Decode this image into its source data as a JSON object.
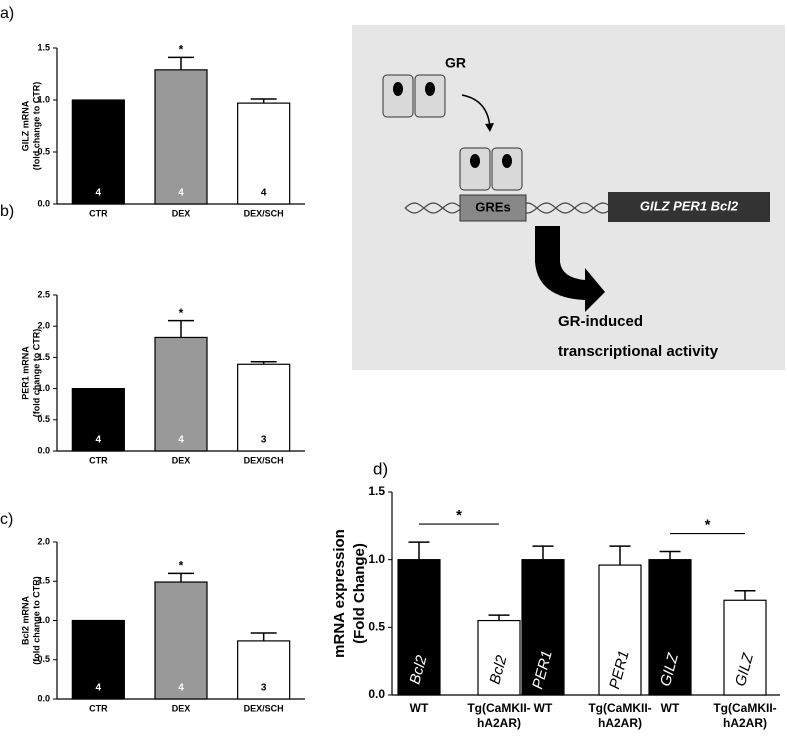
{
  "chart_data": [
    {
      "type": "bar",
      "label": "a)",
      "ylabel": [
        "GILZ mRNA",
        "(fold change to CTR)"
      ],
      "categories": [
        [
          "CTR"
        ],
        [
          "DEX"
        ],
        [
          "DEX/SCH"
        ]
      ],
      "values": [
        1.0,
        1.29,
        0.97
      ],
      "errors": [
        null,
        0.12,
        0.04
      ],
      "colors": [
        "#000000",
        "#999999",
        "#ffffff"
      ],
      "n_labels": [
        "4",
        "4",
        "4"
      ],
      "significance": [
        {
          "label": "*",
          "bars": [
            1
          ]
        }
      ],
      "ylim": [
        0,
        1.5
      ],
      "yticks": [
        {
          "value": 0,
          "label": "0.0"
        },
        {
          "value": 0.5,
          "label": "0.5"
        },
        {
          "value": 1,
          "label": "1.0"
        },
        {
          "value": 1.5,
          "label": "1.5"
        }
      ]
    },
    {
      "type": "bar",
      "label": "b)",
      "ylabel": [
        "PER1 mRNA",
        "(fold change to CTR)"
      ],
      "categories": [
        [
          "CTR"
        ],
        [
          "DEX"
        ],
        [
          "DEX/SCH"
        ]
      ],
      "values": [
        1.0,
        1.82,
        1.39
      ],
      "errors": [
        null,
        0.27,
        0.04
      ],
      "colors": [
        "#000000",
        "#999999",
        "#ffffff"
      ],
      "n_labels": [
        "4",
        "4",
        "3"
      ],
      "significance": [
        {
          "label": "*",
          "bars": [
            1
          ]
        }
      ],
      "ylim": [
        0,
        2.5
      ],
      "yticks": [
        {
          "value": 0,
          "label": "0.0"
        },
        {
          "value": 0.5,
          "label": "0.5"
        },
        {
          "value": 1,
          "label": "1.0"
        },
        {
          "value": 1.5,
          "label": "1.5"
        },
        {
          "value": 2,
          "label": "2.0"
        },
        {
          "value": 2.5,
          "label": "2.5"
        }
      ]
    },
    {
      "type": "bar",
      "label": "c)",
      "ylabel": [
        "Bcl2 mRNA",
        "(fold change to CTR)"
      ],
      "categories": [
        [
          "CTR"
        ],
        [
          "DEX"
        ],
        [
          "DEX/SCH"
        ]
      ],
      "values": [
        1.0,
        1.49,
        0.74
      ],
      "errors": [
        null,
        0.11,
        0.1
      ],
      "colors": [
        "#000000",
        "#999999",
        "#ffffff"
      ],
      "n_labels": [
        "4",
        "4",
        "3"
      ],
      "significance": [
        {
          "label": "*",
          "bars": [
            1
          ]
        }
      ],
      "ylim": [
        0,
        2.0
      ],
      "yticks": [
        {
          "value": 0,
          "label": "0.0"
        },
        {
          "value": 0.5,
          "label": "0.5"
        },
        {
          "value": 1,
          "label": "1.0"
        },
        {
          "value": 1.5,
          "label": "1.5"
        },
        {
          "value": 2,
          "label": "2.0"
        }
      ]
    },
    {
      "type": "bar",
      "label": "d)",
      "ylabel": [
        "mRNA expression",
        "(Fold Change)"
      ],
      "categories": [
        [
          "WT"
        ],
        [
          "Tg(CaMKII-",
          "hA2AR)"
        ],
        [
          "WT"
        ],
        [
          "Tg(CaMKII-",
          "hA2AR)"
        ],
        [
          "WT"
        ],
        [
          "Tg(CaMKII-",
          "hA2AR)"
        ]
      ],
      "values": [
        1.0,
        0.55,
        1.0,
        0.96,
        1.0,
        0.7
      ],
      "errors": [
        0.13,
        0.04,
        0.1,
        0.14,
        0.06,
        0.07
      ],
      "colors": [
        "#000000",
        "#ffffff",
        "#000000",
        "#ffffff",
        "#000000",
        "#ffffff"
      ],
      "bar_labels": [
        "Bcl2",
        "Bcl2",
        "PER1",
        "PER1",
        "GILZ",
        "GILZ"
      ],
      "significance": [
        {
          "label": "*",
          "bars": [
            0,
            1
          ]
        },
        {
          "label": "*",
          "bars": [
            4,
            5
          ]
        }
      ],
      "ylim": [
        0,
        1.5
      ],
      "yticks": [
        {
          "value": 0,
          "label": "0.0"
        },
        {
          "value": 0.5,
          "label": "0.5"
        },
        {
          "value": 1,
          "label": "1.0"
        },
        {
          "value": 1.5,
          "label": "1.5"
        }
      ]
    }
  ],
  "diagram": {
    "receptor": "GR",
    "element": "GREs",
    "genes": "GILZ PER1 Bcl2",
    "caption": [
      "GR-induced",
      "transcriptional activity"
    ]
  }
}
